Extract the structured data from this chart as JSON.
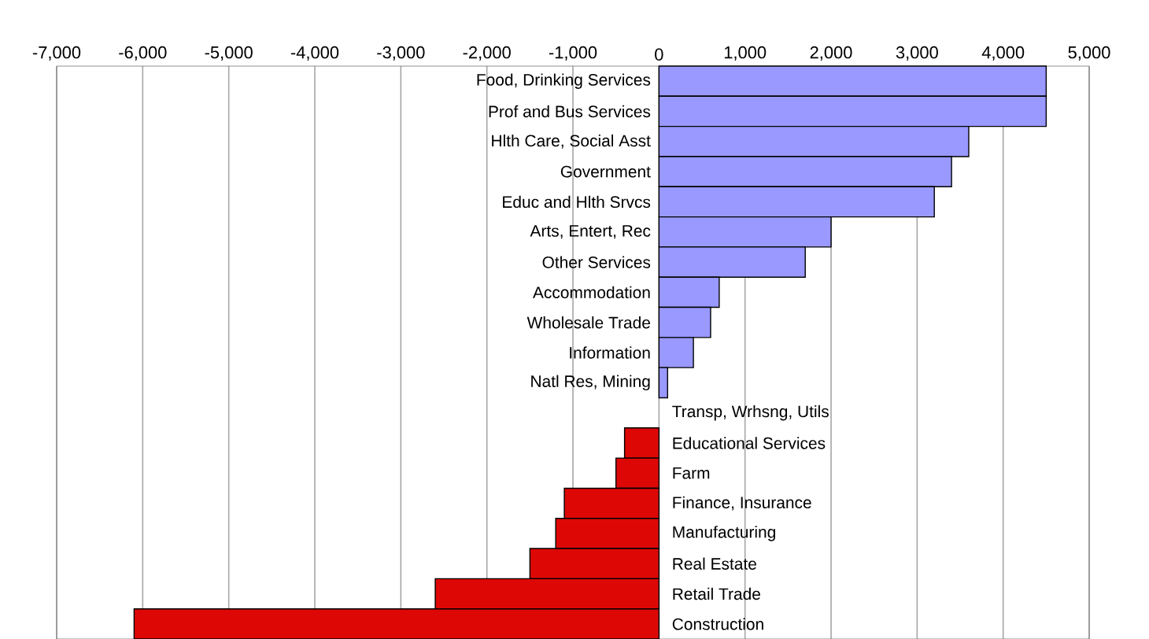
{
  "chart_data": {
    "type": "bar",
    "orientation": "horizontal",
    "categories": [
      "Food, Drinking Services",
      "Prof and Bus Services",
      "Hlth Care, Social Asst",
      "Government",
      "Educ and Hlth Srvcs",
      "Arts, Entert, Rec",
      "Other Services",
      "Accommodation",
      "Wholesale Trade",
      "Information",
      "Natl Res, Mining",
      "Transp, Wrhsng, Utils",
      "Educational Services",
      "Farm",
      "Finance, Insurance",
      "Manufacturing",
      "Real Estate",
      "Retail Trade",
      "Construction"
    ],
    "values": [
      4500,
      4500,
      3600,
      3400,
      3200,
      2000,
      1700,
      700,
      600,
      400,
      100,
      0,
      -400,
      -500,
      -1100,
      -1200,
      -1500,
      -2600,
      -6100
    ],
    "colors": [
      "#9999ff",
      "#9999ff",
      "#9999ff",
      "#9999ff",
      "#9999ff",
      "#9999ff",
      "#9999ff",
      "#9999ff",
      "#9999ff",
      "#9999ff",
      "#9999ff",
      "#9999ff",
      "#dd0806",
      "#dd0806",
      "#dd0806",
      "#dd0806",
      "#dd0806",
      "#dd0806",
      "#dd0806"
    ],
    "xlim": [
      -7000,
      5000
    ],
    "xticks": [
      {
        "value": -7000,
        "label": "-7,000"
      },
      {
        "value": -6000,
        "label": "-6,000"
      },
      {
        "value": -5000,
        "label": "-5,000"
      },
      {
        "value": -4000,
        "label": "-4,000"
      },
      {
        "value": -3000,
        "label": "-3,000"
      },
      {
        "value": -2000,
        "label": "-2,000"
      },
      {
        "value": -1000,
        "label": "-1,000"
      },
      0,
      {
        "value": 1000,
        "label": "1,000"
      },
      {
        "value": 2000,
        "label": "2,000"
      },
      {
        "value": 3000,
        "label": "3,000"
      },
      {
        "value": 4000,
        "label": "4,000"
      },
      {
        "value": 5000,
        "label": "5,000"
      }
    ],
    "grid": "x"
  }
}
